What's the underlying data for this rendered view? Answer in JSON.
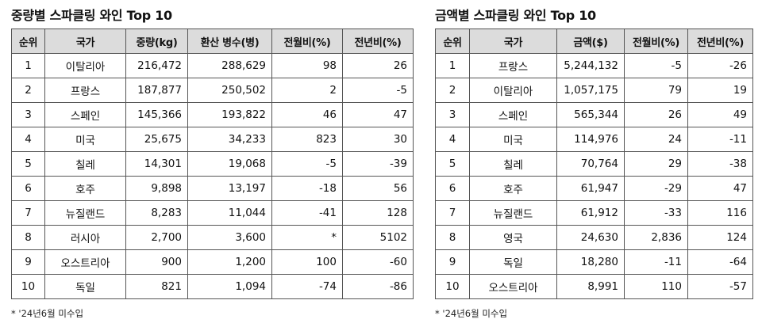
{
  "volume_table": {
    "title": "중량별 스파클링 와인 Top 10",
    "headers": [
      "순위",
      "국가",
      "중량(kg)",
      "환산 병수(병)",
      "전월비(%)",
      "전년비(%)"
    ],
    "rows": [
      [
        "1",
        "이탈리아",
        "216,472",
        "288,629",
        "98",
        "26"
      ],
      [
        "2",
        "프랑스",
        "187,877",
        "250,502",
        "2",
        "-5"
      ],
      [
        "3",
        "스페인",
        "145,366",
        "193,822",
        "46",
        "47"
      ],
      [
        "4",
        "미국",
        "25,675",
        "34,233",
        "823",
        "30"
      ],
      [
        "5",
        "칠레",
        "14,301",
        "19,068",
        "-5",
        "-39"
      ],
      [
        "6",
        "호주",
        "9,898",
        "13,197",
        "-18",
        "56"
      ],
      [
        "7",
        "뉴질랜드",
        "8,283",
        "11,044",
        "-41",
        "128"
      ],
      [
        "8",
        "러시아",
        "2,700",
        "3,600",
        "*",
        "5102"
      ],
      [
        "9",
        "오스트리아",
        "900",
        "1,200",
        "100",
        "-60"
      ],
      [
        "10",
        "독일",
        "821",
        "1,094",
        "-74",
        "-86"
      ]
    ],
    "note": "* '24년6월 미수입"
  },
  "value_table": {
    "title": "금액별 스파클링 와인 Top 10",
    "headers": [
      "순위",
      "국가",
      "금액($)",
      "전월비(%)",
      "전년비(%)"
    ],
    "rows": [
      [
        "1",
        "프랑스",
        "5,244,132",
        "-5",
        "-26"
      ],
      [
        "2",
        "이탈리아",
        "1,057,175",
        "79",
        "19"
      ],
      [
        "3",
        "스페인",
        "565,344",
        "26",
        "49"
      ],
      [
        "4",
        "미국",
        "114,976",
        "24",
        "-11"
      ],
      [
        "5",
        "칠레",
        "70,764",
        "29",
        "-38"
      ],
      [
        "6",
        "호주",
        "61,947",
        "-29",
        "47"
      ],
      [
        "7",
        "뉴질랜드",
        "61,912",
        "-33",
        "116"
      ],
      [
        "8",
        "영국",
        "24,630",
        "2,836",
        "124"
      ],
      [
        "9",
        "독일",
        "18,280",
        "-11",
        "-64"
      ],
      [
        "10",
        "오스트리아",
        "8,991",
        "110",
        "-57"
      ]
    ],
    "note": "* '24년6월 미수입"
  }
}
